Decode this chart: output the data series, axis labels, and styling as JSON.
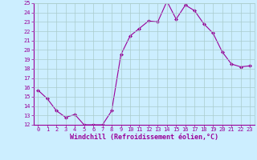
{
  "x": [
    0,
    1,
    2,
    3,
    4,
    5,
    6,
    7,
    8,
    9,
    10,
    11,
    12,
    13,
    14,
    15,
    16,
    17,
    18,
    19,
    20,
    21,
    22,
    23
  ],
  "y": [
    15.7,
    14.8,
    13.5,
    12.8,
    13.1,
    12.0,
    12.0,
    12.0,
    13.5,
    19.5,
    21.5,
    22.3,
    23.1,
    23.0,
    25.2,
    23.3,
    24.8,
    24.2,
    22.8,
    21.8,
    19.8,
    18.5,
    18.2,
    18.3
  ],
  "ylim": [
    12,
    25
  ],
  "xlim": [
    -0.5,
    23.5
  ],
  "yticks": [
    12,
    13,
    14,
    15,
    16,
    17,
    18,
    19,
    20,
    21,
    22,
    23,
    24,
    25
  ],
  "xticks": [
    0,
    1,
    2,
    3,
    4,
    5,
    6,
    7,
    8,
    9,
    10,
    11,
    12,
    13,
    14,
    15,
    16,
    17,
    18,
    19,
    20,
    21,
    22,
    23
  ],
  "xlabel": "Windchill (Refroidissement éolien,°C)",
  "line_color": "#990099",
  "marker_color": "#990099",
  "bg_color": "#cceeff",
  "grid_color": "#aacccc",
  "xlabel_color": "#990099",
  "tick_color": "#990099",
  "tick_fontsize": 5.0,
  "xlabel_fontsize": 6.0,
  "marker": "D",
  "marker_size": 2.0,
  "line_width": 0.8
}
